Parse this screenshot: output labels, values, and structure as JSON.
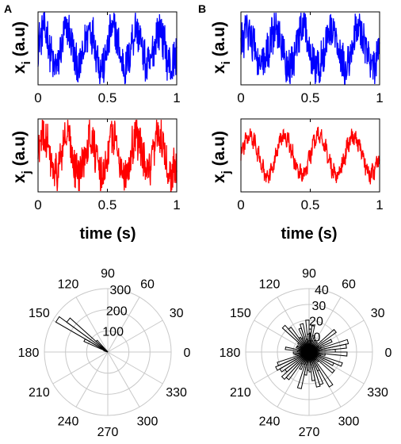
{
  "panels": [
    {
      "letter": "A"
    },
    {
      "letter": "B"
    }
  ],
  "axes_text": {
    "xi_ylabel_main": "x",
    "xi_ylabel_sub": "i",
    "xj_ylabel_main": "x",
    "xj_ylabel_sub": "j",
    "ylabel_unit": "(a.u)",
    "xlabel": "time (s)"
  },
  "colors": {
    "xi": "#0000ff",
    "xj": "#ff0000",
    "axis": "#000000",
    "polar_grid": "#c8c8c8"
  },
  "chart_data": [
    {
      "panel": "A",
      "type": "line",
      "series": [
        {
          "name": "xi",
          "color": "#0000ff"
        }
      ],
      "xlim": [
        0,
        1
      ],
      "xticks": [
        "0",
        "0.5",
        "1"
      ],
      "oscillation_hz": 6,
      "noise": "high"
    },
    {
      "panel": "A",
      "type": "line",
      "series": [
        {
          "name": "xj",
          "color": "#ff0000"
        }
      ],
      "xlim": [
        0,
        1
      ],
      "xticks": [
        "0",
        "0.5",
        "1"
      ],
      "oscillation_hz": 6,
      "noise": "high"
    },
    {
      "panel": "B",
      "type": "line",
      "series": [
        {
          "name": "xi",
          "color": "#0000ff"
        }
      ],
      "xlim": [
        0,
        1
      ],
      "xticks": [
        "0",
        "0.5",
        "1"
      ],
      "oscillation_hz": 5,
      "noise": "high"
    },
    {
      "panel": "B",
      "type": "line",
      "series": [
        {
          "name": "xj",
          "color": "#ff0000"
        }
      ],
      "xlim": [
        0,
        1
      ],
      "xticks": [
        "0",
        "0.5",
        "1"
      ],
      "oscillation_hz": 4,
      "noise": "low"
    },
    {
      "panel": "A",
      "type": "polar_histogram",
      "rmax": 300,
      "rticks": [
        "100",
        "200",
        "300"
      ],
      "angle_ticks": [
        "0",
        "30",
        "60",
        "90",
        "120",
        "150",
        "180",
        "210",
        "240",
        "270",
        "300",
        "330"
      ],
      "peak_angle_deg": 145,
      "peak_count": 300
    },
    {
      "panel": "B",
      "type": "polar_histogram",
      "rmax": 40,
      "rticks": [
        "10",
        "20",
        "30",
        "40"
      ],
      "angle_ticks": [
        "0",
        "30",
        "60",
        "90",
        "120",
        "150",
        "180",
        "210",
        "240",
        "270",
        "300",
        "330"
      ],
      "distribution": "uniform",
      "typical_count": 15
    }
  ]
}
